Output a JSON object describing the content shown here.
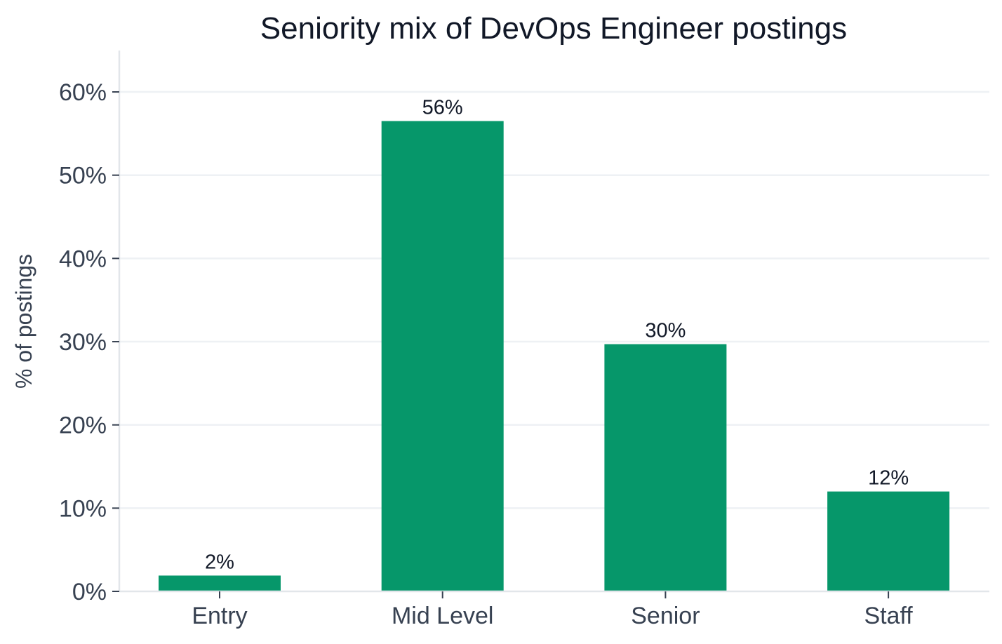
{
  "colors": {
    "bar": "#06976a",
    "grid": "#eef1f4",
    "axis": "#e2e6ea",
    "text": "#374151",
    "title": "#111827"
  },
  "chart_data": {
    "type": "bar",
    "title": "Seniority mix of DevOps Engineer postings",
    "xlabel": "",
    "ylabel": "% of postings",
    "categories": [
      "Entry",
      "Mid Level",
      "Senior",
      "Staff"
    ],
    "values": [
      1.9,
      56.5,
      29.7,
      12.0
    ],
    "data_labels": [
      "2%",
      "56%",
      "30%",
      "12%"
    ],
    "ylim": [
      0,
      65
    ],
    "yticks": [
      0,
      10,
      20,
      30,
      40,
      50,
      60
    ],
    "ytick_labels": [
      "0%",
      "10%",
      "20%",
      "30%",
      "40%",
      "50%",
      "60%"
    ],
    "grid": "horizontal",
    "legend": "none"
  }
}
